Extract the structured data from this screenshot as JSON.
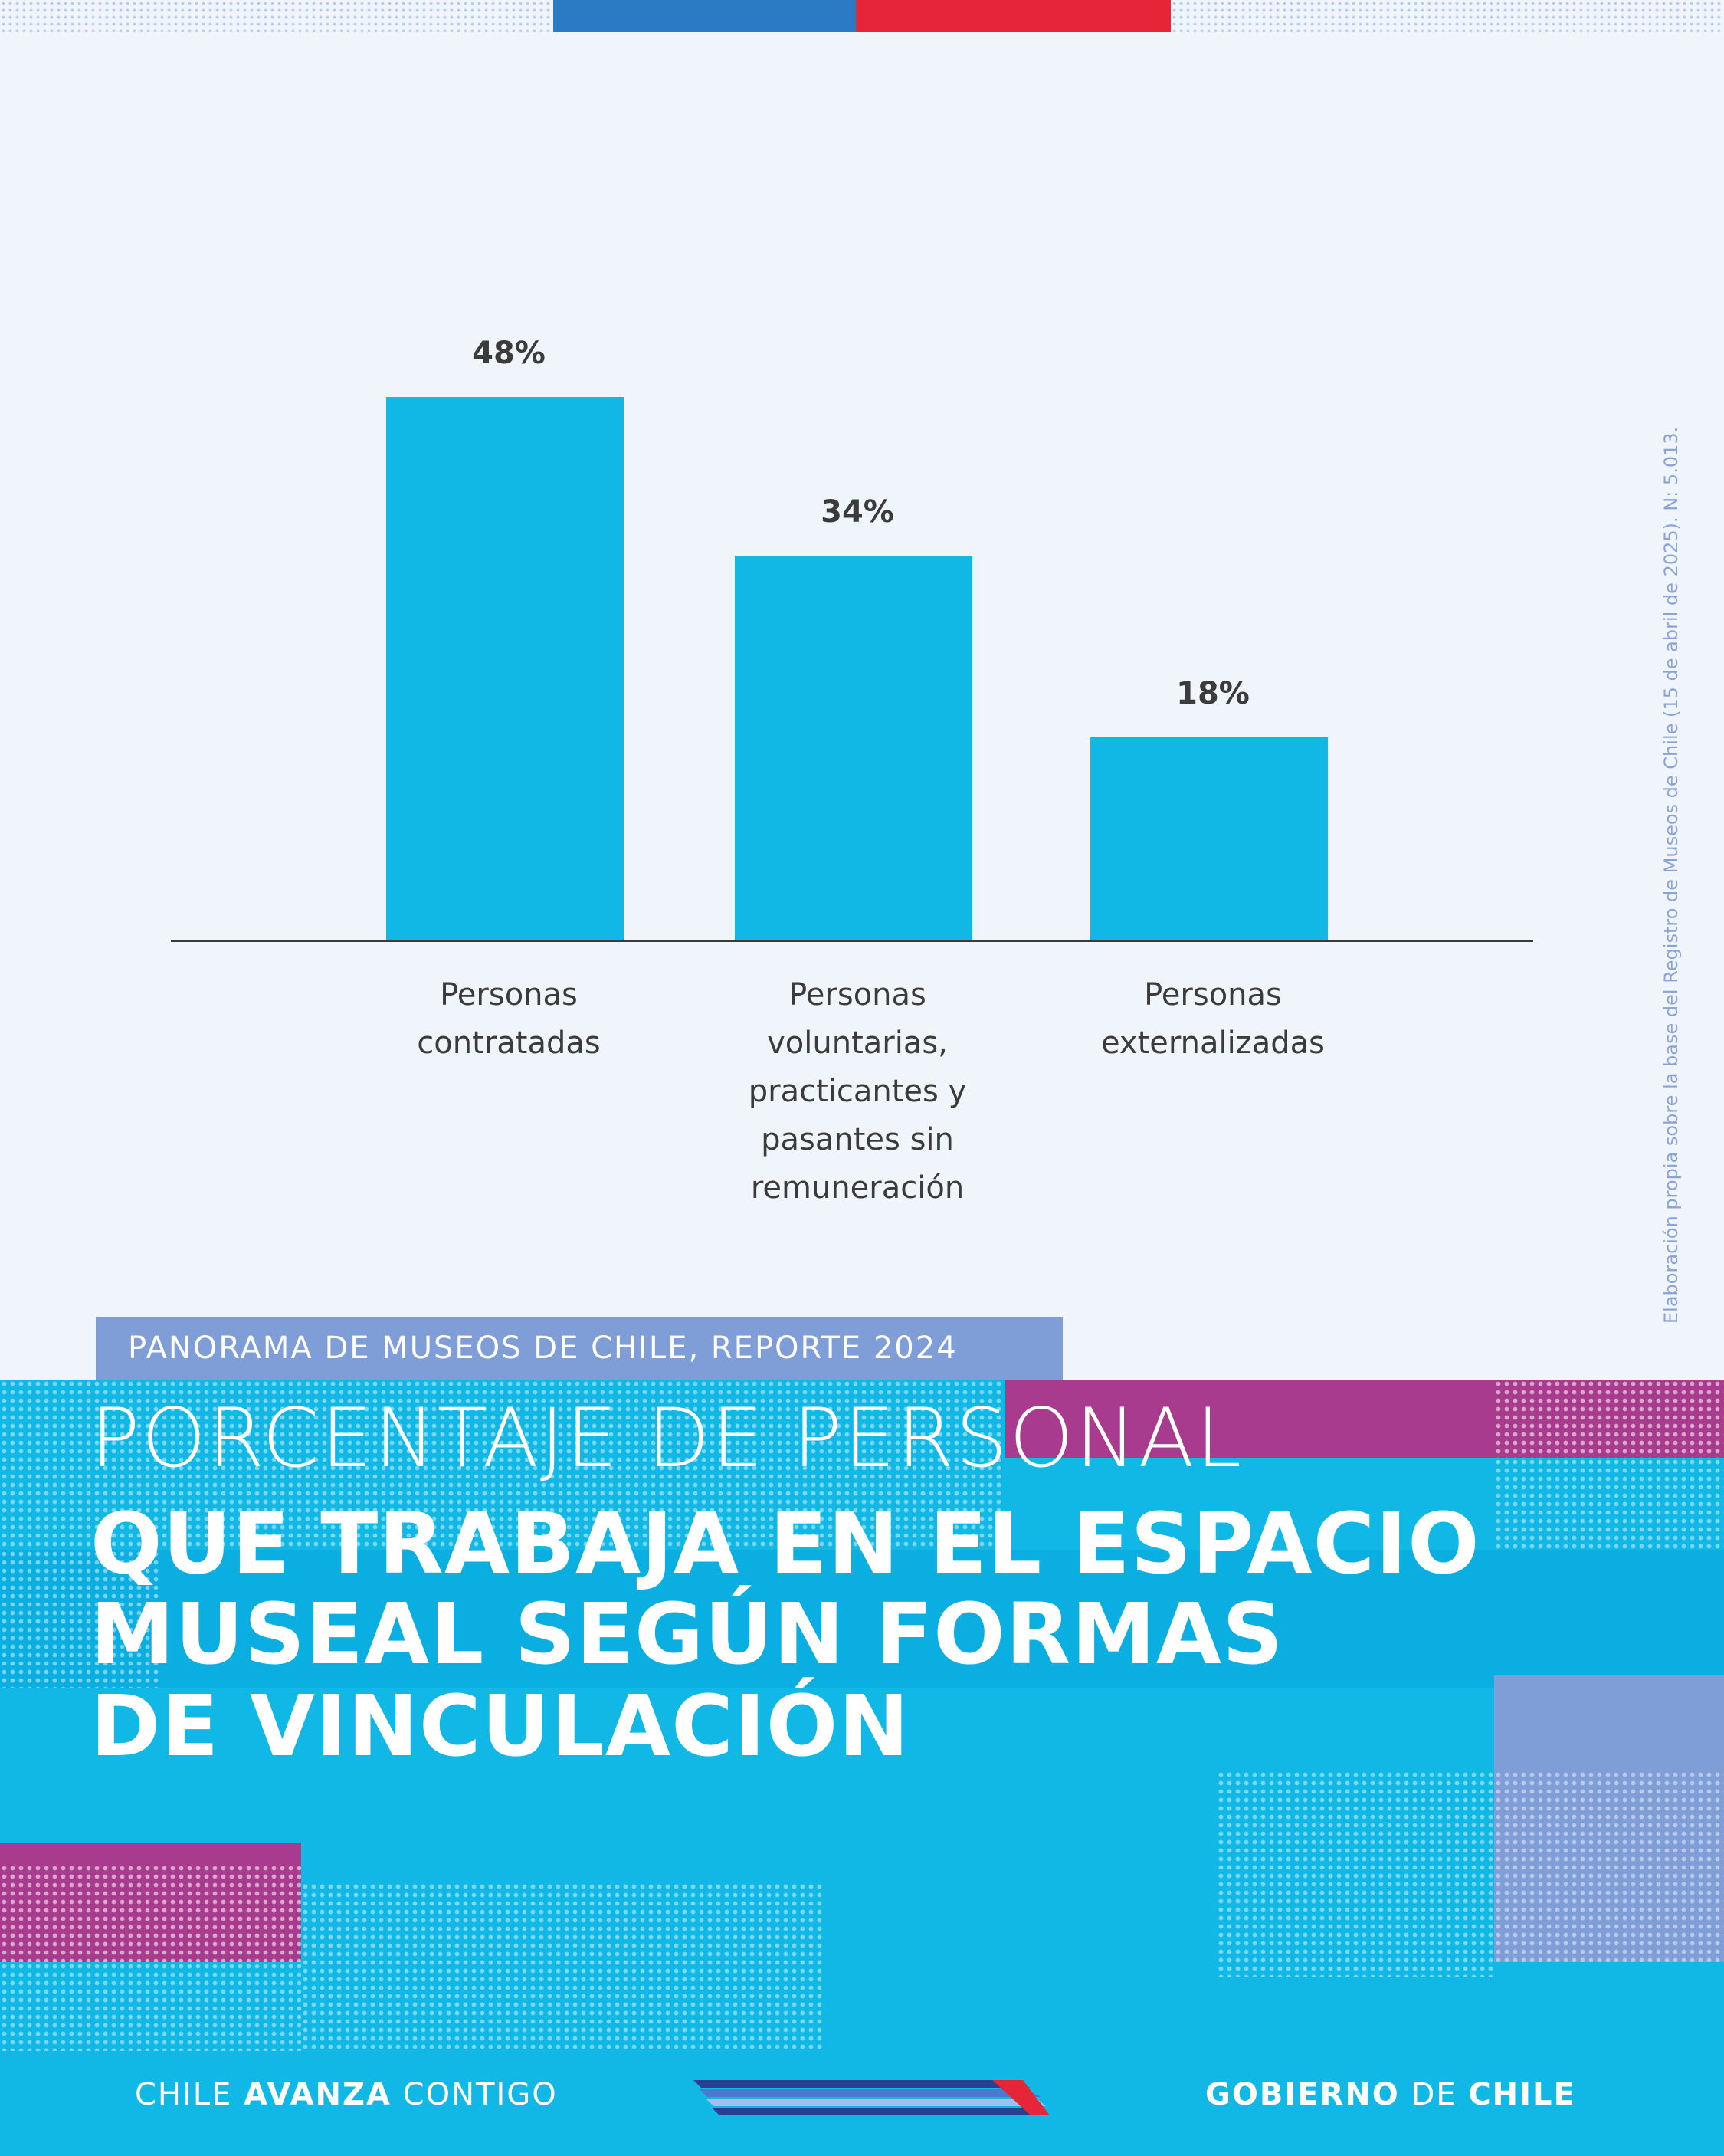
{
  "colors": {
    "background": "#f0f5fc",
    "bar": "#11b8e6",
    "flag_blue": "#2b7bc4",
    "flag_red": "#e52538",
    "panel": "#11b8e6",
    "magenta": "#a83b8e",
    "lavender": "#7f9dd6",
    "text_dark": "#3b3b3b"
  },
  "report_tag": "PANORAMA DE MUSEOS DE CHILE, REPORTE 2024",
  "title": {
    "line1": "PORCENTAJE DE PERSONAL",
    "line2": "QUE TRABAJA EN EL ESPACIO",
    "line3": "MUSEAL SEGÚN FORMAS",
    "line4": "DE VINCULACIÓN"
  },
  "source_note": "Elaboración propia sobre la base del Registro de Museos de Chile (15 de abril de 2025). N: 5.013.",
  "footer": {
    "left_1": "CHILE ",
    "left_2": "AVANZA",
    "left_3": " CONTIGO",
    "right_1": "GOBIERNO",
    "right_2": " DE ",
    "right_3": "CHILE"
  },
  "chart_data": {
    "type": "bar",
    "categories": [
      [
        "Personas",
        "contratadas"
      ],
      [
        "Personas",
        "voluntarias,",
        "practicantes y",
        "pasantes sin",
        "remuneración"
      ],
      [
        "Personas",
        "externalizadas"
      ]
    ],
    "values": [
      48,
      34,
      18
    ],
    "value_labels": [
      "48%",
      "34%",
      "18%"
    ],
    "unit": "%",
    "ylim": [
      0,
      48
    ],
    "grid": false,
    "legend": "none"
  }
}
